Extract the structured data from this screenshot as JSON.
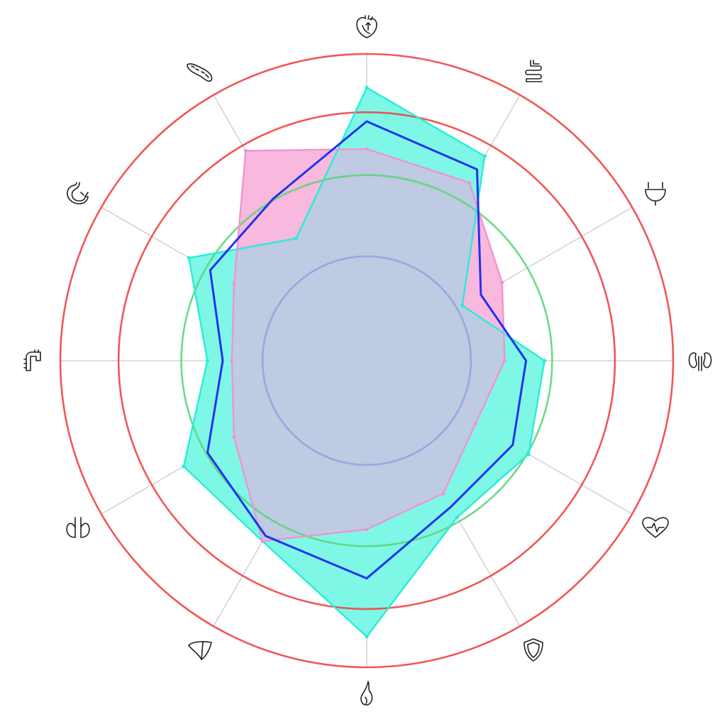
{
  "chart_data": {
    "type": "radar",
    "axes": [
      {
        "icon": "heart-organ-icon"
      },
      {
        "icon": "intestine-icon"
      },
      {
        "icon": "bladder-icon"
      },
      {
        "icon": "kidneys-icon"
      },
      {
        "icon": "heartbeat-icon"
      },
      {
        "icon": "shield-icon"
      },
      {
        "icon": "gallbladder-icon"
      },
      {
        "icon": "liver-icon"
      },
      {
        "icon": "lungs-icon"
      },
      {
        "icon": "colon-icon"
      },
      {
        "icon": "stomach-icon"
      },
      {
        "icon": "pancreas-icon"
      }
    ],
    "rmax": 1.0,
    "grid": true,
    "reference_circles": [
      {
        "r": 0.34,
        "color": "#8ea6e0"
      },
      {
        "r": 0.605,
        "color": "#5cd67a"
      },
      {
        "r": 0.81,
        "color": "#f04545"
      },
      {
        "r": 1.0,
        "color": "#f04545"
      }
    ],
    "series": [
      {
        "color": "#26eed8",
        "fill": "#7ff7e6",
        "values": [
          0.89,
          0.77,
          0.36,
          0.58,
          0.61,
          0.59,
          0.9,
          0.68,
          0.69,
          0.52,
          0.67,
          0.46
        ]
      },
      {
        "color": "#ef95cf",
        "fill": "#f9b8dd",
        "values": [
          0.69,
          0.67,
          0.51,
          0.45,
          0.41,
          0.5,
          0.55,
          0.68,
          0.5,
          0.44,
          0.5,
          0.79
        ]
      },
      {
        "color": "#2233ee",
        "fill": "none",
        "values": [
          0.78,
          0.72,
          0.43,
          0.52,
          0.55,
          0.55,
          0.71,
          0.66,
          0.6,
          0.47,
          0.59,
          0.61
        ]
      }
    ],
    "overlap_fill": "#bfcae3"
  }
}
